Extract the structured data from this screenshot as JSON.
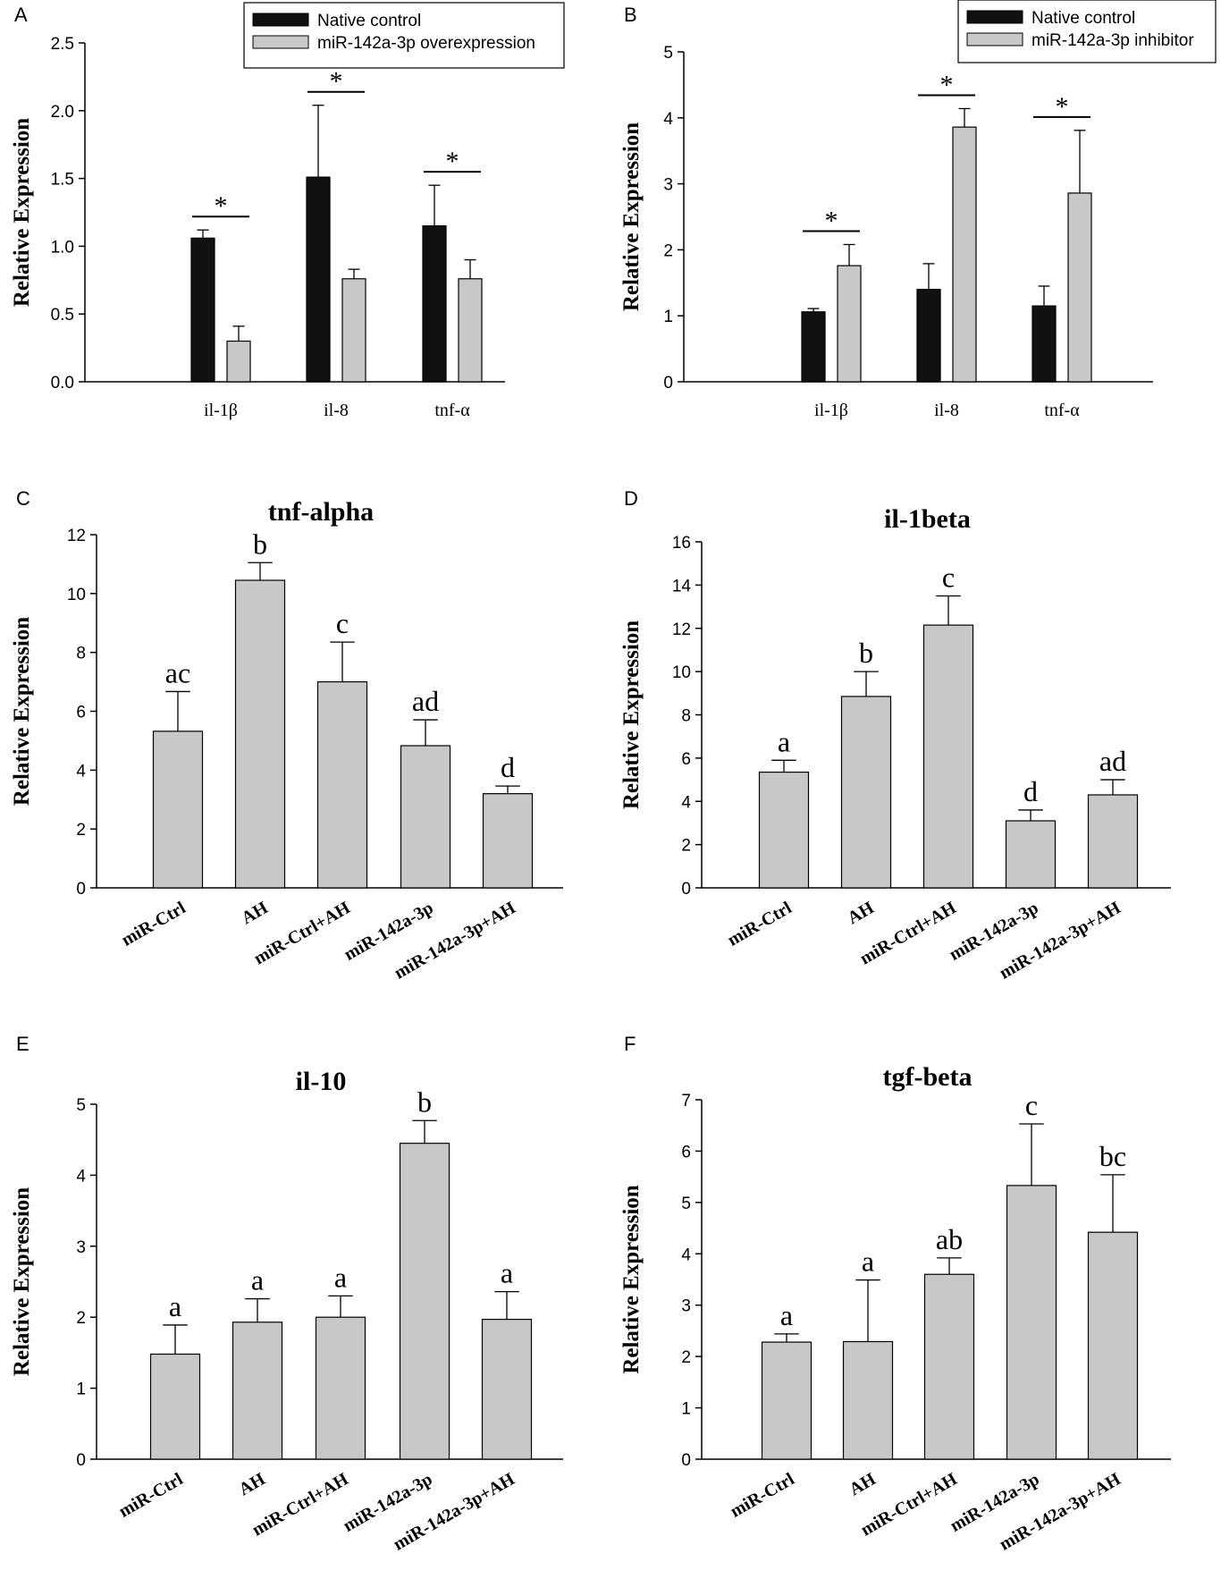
{
  "chart_data": [
    {
      "panel": "A",
      "type": "bar",
      "title": "",
      "ylabel": "Relative Expression",
      "xlabel": "",
      "ylim": [
        0,
        2.5
      ],
      "yticks": [
        "0.0",
        "0.5",
        "1.0",
        "1.5",
        "2.0",
        "2.5"
      ],
      "categories": [
        "il-1β",
        "il-8",
        "tnf-α"
      ],
      "series": [
        {
          "name": "Native control",
          "color": "#111111",
          "values": [
            1.06,
            1.51,
            1.15
          ],
          "errors": [
            0.06,
            0.53,
            0.3
          ]
        },
        {
          "name": "miR-142a-3p overexpression",
          "color": "#c8c8c8",
          "values": [
            0.3,
            0.76,
            0.76
          ],
          "errors": [
            0.11,
            0.07,
            0.14
          ]
        }
      ],
      "significance": [
        "*",
        "*",
        "*"
      ],
      "letters": [],
      "legend": "top-right"
    },
    {
      "panel": "B",
      "type": "bar",
      "title": "",
      "ylabel": "Relative Expression",
      "xlabel": "",
      "ylim": [
        0,
        5
      ],
      "yticks": [
        "0",
        "1",
        "2",
        "3",
        "4",
        "5"
      ],
      "categories": [
        "il-1β",
        "il-8",
        "tnf-α"
      ],
      "series": [
        {
          "name": "Native control",
          "color": "#111111",
          "values": [
            1.06,
            1.4,
            1.15
          ],
          "errors": [
            0.05,
            0.39,
            0.3
          ]
        },
        {
          "name": "miR-142a-3p inhibitor",
          "color": "#c8c8c8",
          "values": [
            1.76,
            3.86,
            2.86
          ],
          "errors": [
            0.32,
            0.28,
            0.95
          ]
        }
      ],
      "significance": [
        "*",
        "*",
        "*"
      ],
      "letters": [],
      "legend": "top-right"
    },
    {
      "panel": "C",
      "type": "bar",
      "title": "tnf-alpha",
      "ylabel": "Relative Expression",
      "xlabel": "",
      "ylim": [
        0,
        12
      ],
      "yticks": [
        "0",
        "2",
        "4",
        "6",
        "8",
        "10",
        "12"
      ],
      "categories": [
        "miR-Ctrl",
        "AH",
        "miR-Ctrl+AH",
        "miR-142a-3p",
        "miR-142a-3p+AH"
      ],
      "series": [
        {
          "name": "",
          "color": "#c8c8c8",
          "values": [
            5.32,
            10.45,
            7.0,
            4.83,
            3.2
          ],
          "errors": [
            1.35,
            0.6,
            1.35,
            0.88,
            0.26
          ]
        }
      ],
      "letters": [
        "ac",
        "b",
        "c",
        "ad",
        "d"
      ],
      "significance": [],
      "legend": "none"
    },
    {
      "panel": "D",
      "type": "bar",
      "title": "il-1beta",
      "ylabel": "Relative Expression",
      "xlabel": "",
      "ylim": [
        0,
        16
      ],
      "yticks": [
        "0",
        "2",
        "4",
        "6",
        "8",
        "10",
        "12",
        "14",
        "16"
      ],
      "categories": [
        "miR-Ctrl",
        "AH",
        "miR-Ctrl+AH",
        "miR-142a-3p",
        "miR-142a-3p+AH"
      ],
      "series": [
        {
          "name": "",
          "color": "#c8c8c8",
          "values": [
            5.35,
            8.85,
            12.15,
            3.1,
            4.3
          ],
          "errors": [
            0.55,
            1.15,
            1.35,
            0.5,
            0.7
          ]
        }
      ],
      "letters": [
        "a",
        "b",
        "c",
        "d",
        "ad"
      ],
      "significance": [],
      "legend": "none"
    },
    {
      "panel": "E",
      "type": "bar",
      "title": "il-10",
      "ylabel": "Relative Expression",
      "xlabel": "",
      "ylim": [
        0,
        5
      ],
      "yticks": [
        "0",
        "1",
        "2",
        "3",
        "4",
        "5"
      ],
      "categories": [
        "miR-Ctrl",
        "AH",
        "miR-Ctrl+AH",
        "miR-142a-3p",
        "miR-142a-3p+AH"
      ],
      "series": [
        {
          "name": "",
          "color": "#c8c8c8",
          "values": [
            1.48,
            1.93,
            2.0,
            4.45,
            1.97
          ],
          "errors": [
            0.41,
            0.33,
            0.3,
            0.32,
            0.39
          ]
        }
      ],
      "letters": [
        "a",
        "a",
        "a",
        "b",
        "a"
      ],
      "significance": [],
      "legend": "none"
    },
    {
      "panel": "F",
      "type": "bar",
      "title": "tgf-beta",
      "ylabel": "Relative Expression",
      "xlabel": "",
      "ylim": [
        0,
        7
      ],
      "yticks": [
        "0",
        "1",
        "2",
        "3",
        "4",
        "5",
        "6",
        "7"
      ],
      "categories": [
        "miR-Ctrl",
        "AH",
        "miR-Ctrl+AH",
        "miR-142a-3p",
        "miR-142a-3p+AH"
      ],
      "series": [
        {
          "name": "",
          "color": "#c8c8c8",
          "values": [
            2.28,
            2.29,
            3.6,
            5.33,
            4.42
          ],
          "errors": [
            0.16,
            1.2,
            0.32,
            1.2,
            1.12
          ]
        }
      ],
      "letters": [
        "a",
        "a",
        "ab",
        "c",
        "bc"
      ],
      "significance": [],
      "legend": "none"
    }
  ]
}
